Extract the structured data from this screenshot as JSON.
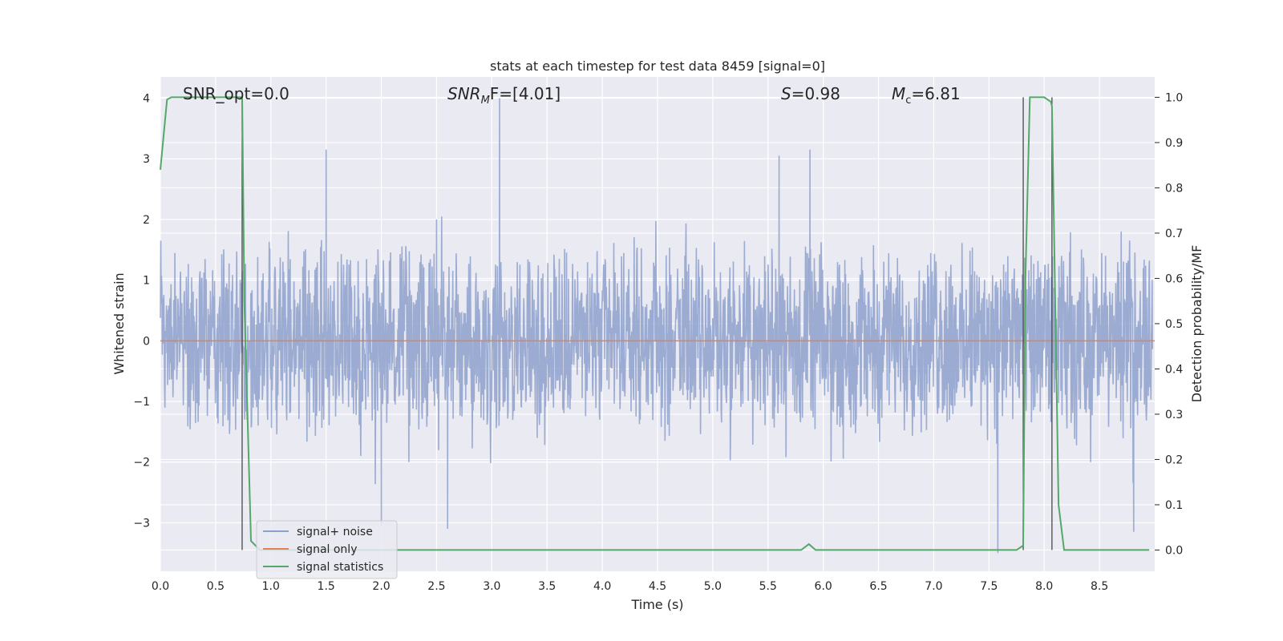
{
  "chart_data": {
    "type": "line",
    "title": "stats at each timestep for test data 8459 [signal=0]",
    "xlabel": "Time (s)",
    "ylabel": "Whitened strain",
    "ylabel_right": "Detection probability/MF",
    "xlim": [
      0,
      9
    ],
    "ylim": [
      -3.8,
      4.35
    ],
    "ylim_right": [
      -0.047,
      1.045
    ],
    "x_ticks": [
      "0.0",
      "0.5",
      "1.0",
      "1.5",
      "2.0",
      "2.5",
      "3.0",
      "3.5",
      "4.0",
      "4.5",
      "5.0",
      "5.5",
      "6.0",
      "6.5",
      "7.0",
      "7.5",
      "8.0",
      "8.5"
    ],
    "y_ticks": [
      "−3",
      "−2",
      "−1",
      "0",
      "1",
      "2",
      "3",
      "4"
    ],
    "y_ticks_right": [
      "0.0",
      "0.1",
      "0.2",
      "0.3",
      "0.4",
      "0.5",
      "0.6",
      "0.7",
      "0.8",
      "0.9",
      "1.0"
    ],
    "grid": true,
    "legend_position": "lower-left",
    "annotations": {
      "snr_opt": "SNR_opt=0.0",
      "snr_mf_main": "SNR",
      "snr_mf_sub": "M",
      "snr_mf_rest": "F=[4.01]",
      "s_italic": "S",
      "s_rest": "=0.98",
      "mc_italic": "M",
      "mc_sub": "c",
      "mc_rest": "=6.81"
    },
    "vlines_x": [
      0.74,
      7.81,
      8.07
    ],
    "series": [
      {
        "name": "signal+ noise",
        "color": "#8da0cb",
        "description_values": "noise, roughly uniform amplitude within ±2 (peaks up to ~4)",
        "notable_peaks": [
          {
            "x": 1.5,
            "y": 3.15
          },
          {
            "x": 3.07,
            "y": 4.0
          },
          {
            "x": 5.88,
            "y": 3.15
          },
          {
            "x": 5.6,
            "y": 3.05
          },
          {
            "x": 2.5,
            "y": 2.0
          },
          {
            "x": 2.0,
            "y": -3.05
          },
          {
            "x": 2.6,
            "y": -3.1
          },
          {
            "x": 7.58,
            "y": -3.5
          },
          {
            "x": 8.81,
            "y": -3.15
          }
        ]
      },
      {
        "name": "signal only",
        "color": "#dd8452",
        "constant_value": 0
      },
      {
        "name": "signal statistics",
        "color": "#55a868",
        "axis": "right",
        "x": [
          0.0,
          0.06,
          0.1,
          0.2,
          0.7,
          0.74,
          0.76,
          0.82,
          0.9,
          5.8,
          5.87,
          5.93,
          7.75,
          7.81,
          7.83,
          7.87,
          7.95,
          8.0,
          8.06,
          8.07,
          8.13,
          8.18,
          8.95
        ],
        "y": [
          0.84,
          0.995,
          1.0,
          1.0,
          1.0,
          1.0,
          0.55,
          0.02,
          0.0,
          0.0,
          0.013,
          0.0,
          0.0,
          0.01,
          0.6,
          1.0,
          1.0,
          1.0,
          0.99,
          0.98,
          0.1,
          0.0,
          0.0
        ]
      }
    ]
  }
}
